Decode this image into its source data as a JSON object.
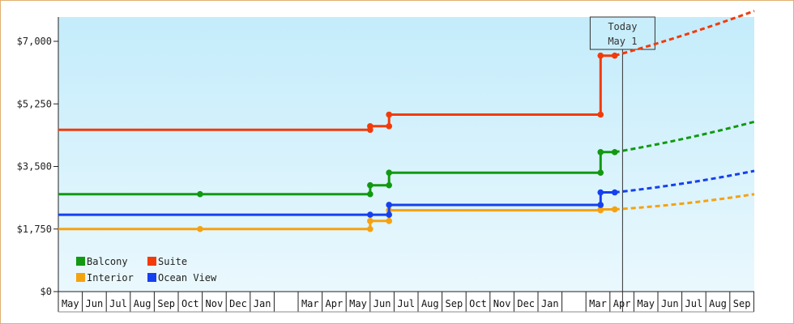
{
  "chart_data": {
    "type": "line",
    "line_style": "step",
    "y_ticks": [
      {
        "value": 0,
        "label": "$0"
      },
      {
        "value": 1750,
        "label": "$1,750"
      },
      {
        "value": 3500,
        "label": "$3,500"
      },
      {
        "value": 5250,
        "label": "$5,250"
      },
      {
        "value": 7000,
        "label": "$7,000"
      }
    ],
    "ylim": [
      0,
      7000
    ],
    "months": [
      "May",
      "Jun",
      "Jul",
      "Aug",
      "Sep",
      "Oct",
      "Nov",
      "Dec",
      "Jan",
      "",
      "Mar",
      "Apr",
      "May",
      "Jun",
      "Jul",
      "Aug",
      "Sep",
      "Oct",
      "Nov",
      "Dec",
      "Jan",
      "",
      "Mar",
      "Apr",
      "May",
      "Jun",
      "Jul",
      "Aug",
      "Sep"
    ],
    "today": {
      "line1": "Today",
      "line2": "May 1",
      "index": 24.0
    },
    "legend_position": "bottom-left",
    "series": [
      {
        "name": "Balcony",
        "color": "#119911",
        "points": [
          [
            0,
            2725
          ],
          [
            6,
            2725
          ],
          [
            13.2,
            2725
          ],
          [
            13.2,
            2975
          ],
          [
            14,
            2975
          ],
          [
            14,
            3325
          ],
          [
            23.4,
            3325
          ],
          [
            23.4,
            3900
          ],
          [
            24,
            3900
          ]
        ],
        "forecast": [
          [
            24,
            3900
          ],
          [
            29.2,
            4750
          ]
        ]
      },
      {
        "name": "Suite",
        "color": "#f33a0a",
        "points": [
          [
            0,
            4525
          ],
          [
            13.2,
            4525
          ],
          [
            13.2,
            4625
          ],
          [
            14,
            4625
          ],
          [
            14,
            4950
          ],
          [
            23.4,
            4950
          ],
          [
            23.4,
            6600
          ],
          [
            24,
            6600
          ]
        ],
        "forecast": [
          [
            24,
            6600
          ],
          [
            29.2,
            7850
          ]
        ]
      },
      {
        "name": "Interior",
        "color": "#f5a211",
        "points": [
          [
            0,
            1750
          ],
          [
            6,
            1750
          ],
          [
            13.2,
            1750
          ],
          [
            13.2,
            1975
          ],
          [
            14,
            1975
          ],
          [
            14,
            2275
          ],
          [
            23.4,
            2275
          ],
          [
            23.4,
            2300
          ],
          [
            24,
            2300
          ]
        ],
        "forecast": [
          [
            24,
            2300
          ],
          [
            29.2,
            2725
          ]
        ]
      },
      {
        "name": "Ocean View",
        "color": "#1540f0",
        "points": [
          [
            0,
            2150
          ],
          [
            13.2,
            2150
          ],
          [
            14,
            2150
          ],
          [
            14,
            2425
          ],
          [
            23.4,
            2425
          ],
          [
            23.4,
            2775
          ],
          [
            24,
            2775
          ]
        ],
        "forecast": [
          [
            24,
            2775
          ],
          [
            29.2,
            3375
          ]
        ]
      }
    ]
  }
}
